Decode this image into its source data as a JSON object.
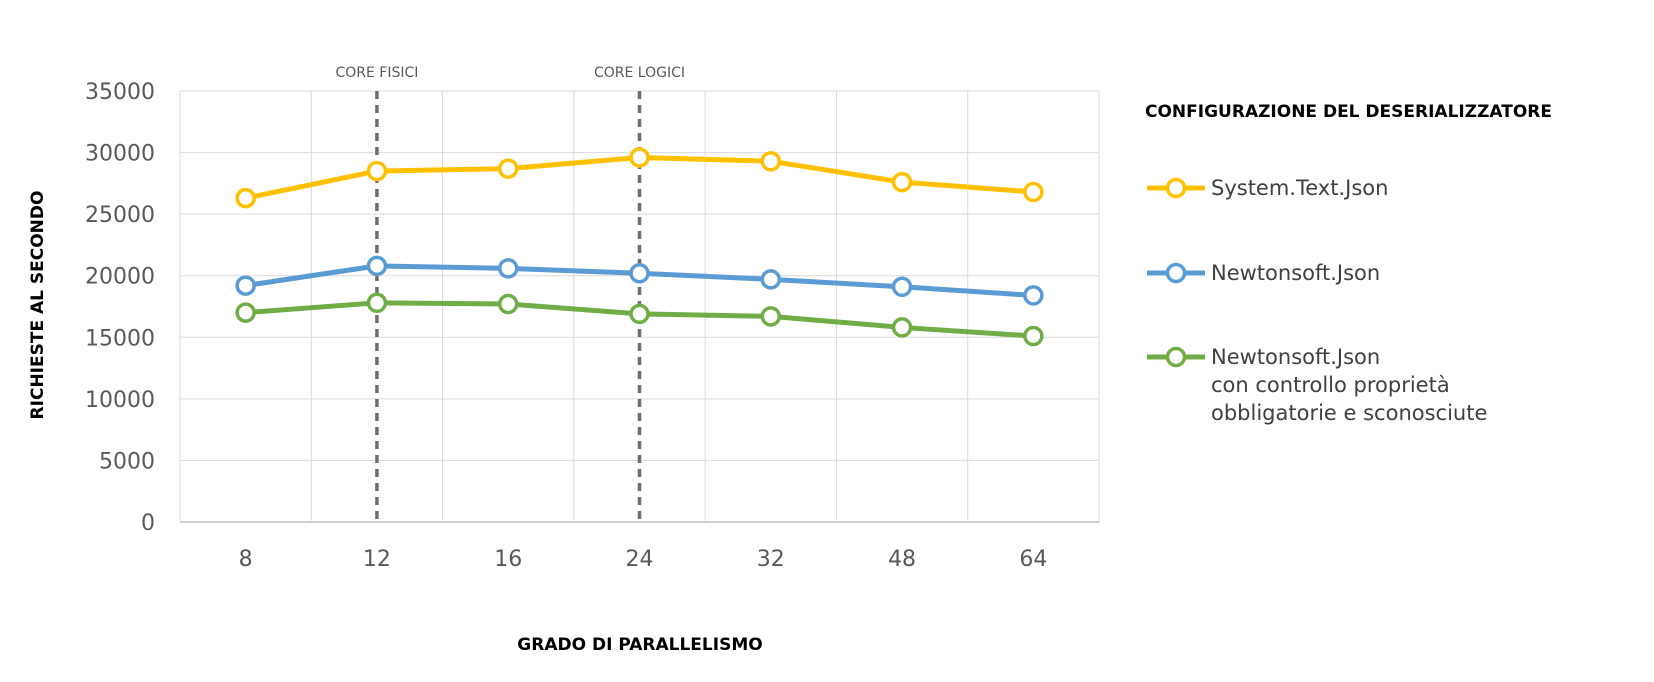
{
  "chart_data": {
    "type": "line",
    "categories": [
      "8",
      "12",
      "16",
      "24",
      "32",
      "48",
      "64"
    ],
    "xlabel": "GRADO DI PARALLELISMO",
    "ylabel": "RICHIESTE AL SECONDO",
    "ylim": [
      0,
      35000
    ],
    "yticks": [
      0,
      5000,
      10000,
      15000,
      20000,
      25000,
      30000,
      35000
    ],
    "grid": true,
    "legend_title": "CONFIGURAZIONE DEL DESERIALIZZATORE",
    "legend_position": "right",
    "vertical_markers": [
      {
        "category": "12",
        "label": "CORE FISICI"
      },
      {
        "category": "24",
        "label": "CORE LOGICI"
      }
    ],
    "series": [
      {
        "name": "System.Text.Json",
        "color": "#FFC000",
        "values": [
          26300,
          28500,
          28700,
          29600,
          29300,
          27600,
          26800
        ]
      },
      {
        "name": "Newtonsoft.Json",
        "color": "#5B9BD5",
        "values": [
          19200,
          20800,
          20600,
          20200,
          19700,
          19100,
          18400
        ]
      },
      {
        "name": "Newtonsoft.Json\ncon controllo proprietà\nobbligatorie e sconosciute",
        "color": "#70AD47",
        "values": [
          17000,
          17800,
          17700,
          16900,
          16700,
          15800,
          15100
        ]
      }
    ]
  }
}
